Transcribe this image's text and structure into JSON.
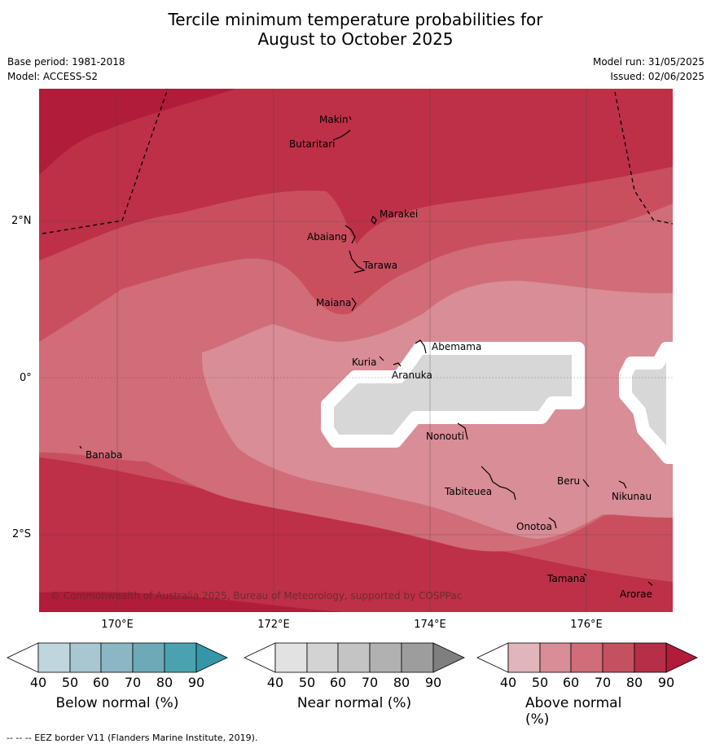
{
  "header": {
    "title_line1": "Tercile minimum temperature probabilities for",
    "title_line2": "August to October 2025",
    "base_period": "Base period: 1981-2018",
    "model": "Model: ACCESS-S2",
    "model_run": "Model run: 31/05/2025",
    "issued": "Issued: 02/06/2025"
  },
  "map": {
    "lat_labels": [
      "2°N",
      "0°",
      "2°S"
    ],
    "lon_labels": [
      "170°E",
      "172°E",
      "174°E",
      "176°E"
    ],
    "copyright": "© Commonwealth of Australia 2025, Bureau of Meteorology, supported by COSPPac",
    "islands": [
      "Makin",
      "Butaritari",
      "Marakei",
      "Abaiang",
      "Tarawa",
      "Maiana",
      "Abemama",
      "Kuria",
      "Aranuka",
      "Nonouti",
      "Banaba",
      "Beru",
      "Tabiteuea",
      "Nikunau",
      "Onotoa",
      "Tamana",
      "Arorae"
    ],
    "colors": {
      "above_90": "#b01c3a",
      "above_80": "#bd3047",
      "above_70": "#c94f5f",
      "above_60": "#d06d78",
      "above_50": "#d98d96",
      "near_normal": "#d7d7d7",
      "border": "#ffffff"
    }
  },
  "colorbars": [
    {
      "label": "Below normal (%)",
      "ticks": [
        "40",
        "50",
        "60",
        "70",
        "80",
        "90"
      ],
      "colors": [
        "#c0d6de",
        "#a8c7d0",
        "#8bb7c4",
        "#6daab8",
        "#4aa2b0",
        "#3596a8"
      ]
    },
    {
      "label": "Near normal (%)",
      "ticks": [
        "40",
        "50",
        "60",
        "70",
        "80",
        "90"
      ],
      "colors": [
        "#e2e2e2",
        "#d3d3d3",
        "#c4c4c4",
        "#b1b1b1",
        "#9d9d9d",
        "#7f7f7f"
      ]
    },
    {
      "label": "Above normal (%)",
      "ticks": [
        "40",
        "50",
        "60",
        "70",
        "80",
        "90"
      ],
      "colors": [
        "#e1b6bb",
        "#d98d96",
        "#d06d78",
        "#c5505f",
        "#b72e48",
        "#b01c3a"
      ]
    }
  ],
  "footer": {
    "eez_note": "--  --  -- EEZ border V11 (Flanders Marine Institute, 2019)."
  }
}
